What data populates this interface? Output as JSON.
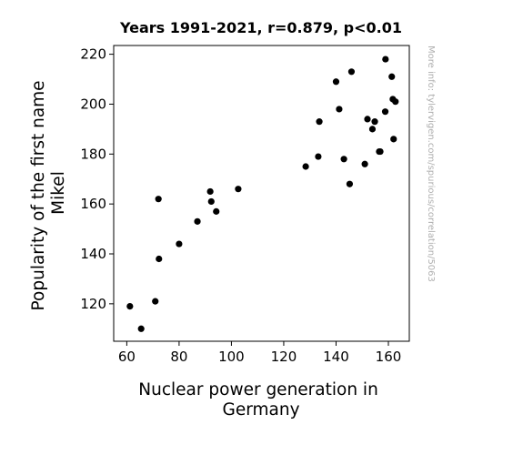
{
  "chart_data": {
    "type": "scatter",
    "title": "Years 1991-2021, r=0.879, p<0.01",
    "xlabel_lines": [
      "Nuclear power generation in",
      "Germany"
    ],
    "ylabel_lines": [
      "Popularity of the first name",
      "Mikel"
    ],
    "side_note": "More info: tylervigen.com/spurious/correlation/5063",
    "xlim": [
      55,
      168
    ],
    "ylim": [
      105,
      223.5
    ],
    "xticks": [
      60,
      80,
      100,
      120,
      140,
      160
    ],
    "yticks": [
      120,
      140,
      160,
      180,
      200,
      220
    ],
    "grid": false,
    "marker_color": "#000000",
    "points": [
      {
        "x": 61.2,
        "y": 119
      },
      {
        "x": 65.5,
        "y": 110
      },
      {
        "x": 70.9,
        "y": 121
      },
      {
        "x": 72.1,
        "y": 162
      },
      {
        "x": 72.3,
        "y": 138
      },
      {
        "x": 80.0,
        "y": 144
      },
      {
        "x": 87.0,
        "y": 153
      },
      {
        "x": 91.9,
        "y": 165
      },
      {
        "x": 92.3,
        "y": 161
      },
      {
        "x": 94.2,
        "y": 157
      },
      {
        "x": 102.6,
        "y": 166
      },
      {
        "x": 128.4,
        "y": 175
      },
      {
        "x": 133.2,
        "y": 179
      },
      {
        "x": 133.6,
        "y": 193
      },
      {
        "x": 140.0,
        "y": 209
      },
      {
        "x": 141.2,
        "y": 198
      },
      {
        "x": 143.0,
        "y": 178
      },
      {
        "x": 145.2,
        "y": 168
      },
      {
        "x": 145.9,
        "y": 213
      },
      {
        "x": 151.0,
        "y": 176
      },
      {
        "x": 152.0,
        "y": 194
      },
      {
        "x": 153.9,
        "y": 190
      },
      {
        "x": 154.8,
        "y": 193
      },
      {
        "x": 156.5,
        "y": 181
      },
      {
        "x": 156.9,
        "y": 181
      },
      {
        "x": 158.8,
        "y": 197
      },
      {
        "x": 158.9,
        "y": 218
      },
      {
        "x": 161.3,
        "y": 211
      },
      {
        "x": 161.7,
        "y": 202
      },
      {
        "x": 162.0,
        "y": 186
      },
      {
        "x": 162.7,
        "y": 201
      }
    ]
  }
}
